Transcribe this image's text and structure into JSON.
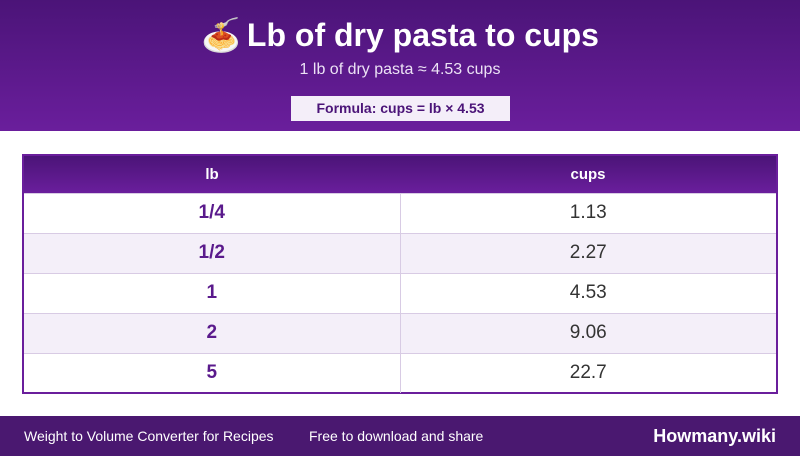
{
  "header": {
    "emoji": "🍝",
    "title": "Lb of dry pasta to cups",
    "subtitle": "1 lb of dry pasta ≈ 4.53 cups",
    "formula": "Formula: cups = lb × 4.53"
  },
  "table": {
    "columns": [
      "lb",
      "cups"
    ],
    "rows": [
      [
        "1/4",
        "1.13"
      ],
      [
        "1/2",
        "2.27"
      ],
      [
        "1",
        "4.53"
      ],
      [
        "2",
        "9.06"
      ],
      [
        "5",
        "22.7"
      ]
    ]
  },
  "footer": {
    "left": "Weight to Volume Converter for Recipes",
    "middle": "Free to download and share",
    "brand": "Howmany.wiki"
  },
  "colors": {
    "header_dark": "#4b1478",
    "header_light": "#6a1e9c",
    "footer": "#4a1870",
    "accent_text": "#5a1a8c"
  }
}
